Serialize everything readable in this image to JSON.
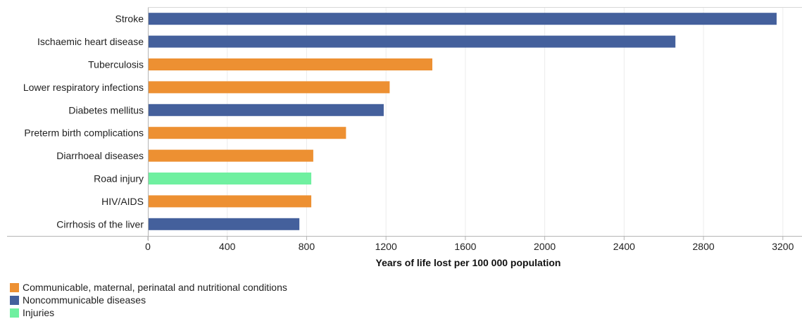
{
  "chart_data": {
    "type": "bar",
    "orientation": "horizontal",
    "categories": [
      "Stroke",
      "Ischaemic heart disease",
      "Tuberculosis",
      "Lower respiratory infections",
      "Diabetes mellitus",
      "Preterm birth complications",
      "Diarrhoeal diseases",
      "Road injury",
      "HIV/AIDS",
      "Cirrhosis of the liver"
    ],
    "values": [
      3165,
      2655,
      1430,
      1215,
      1185,
      995,
      830,
      820,
      820,
      760
    ],
    "groups": [
      "Noncommunicable diseases",
      "Noncommunicable diseases",
      "Communicable, maternal, perinatal and nutritional conditions",
      "Communicable, maternal, perinatal and nutritional conditions",
      "Noncommunicable diseases",
      "Communicable, maternal, perinatal and nutritional conditions",
      "Communicable, maternal, perinatal and nutritional conditions",
      "Injuries",
      "Communicable, maternal, perinatal and nutritional conditions",
      "Noncommunicable diseases"
    ],
    "xlabel": "Years of life lost per 100 000 population",
    "xlim": [
      0,
      3300
    ],
    "xticks": [
      0,
      400,
      800,
      1200,
      1600,
      2000,
      2400,
      2800,
      3200
    ],
    "grid": "vertical",
    "legend_position": "bottom-left",
    "legend": [
      {
        "name": "Communicable, maternal, perinatal and nutritional conditions",
        "color": "#ed9032"
      },
      {
        "name": "Noncommunicable diseases",
        "color": "#44609c"
      },
      {
        "name": "Injuries",
        "color": "#6ff0a0"
      }
    ]
  }
}
